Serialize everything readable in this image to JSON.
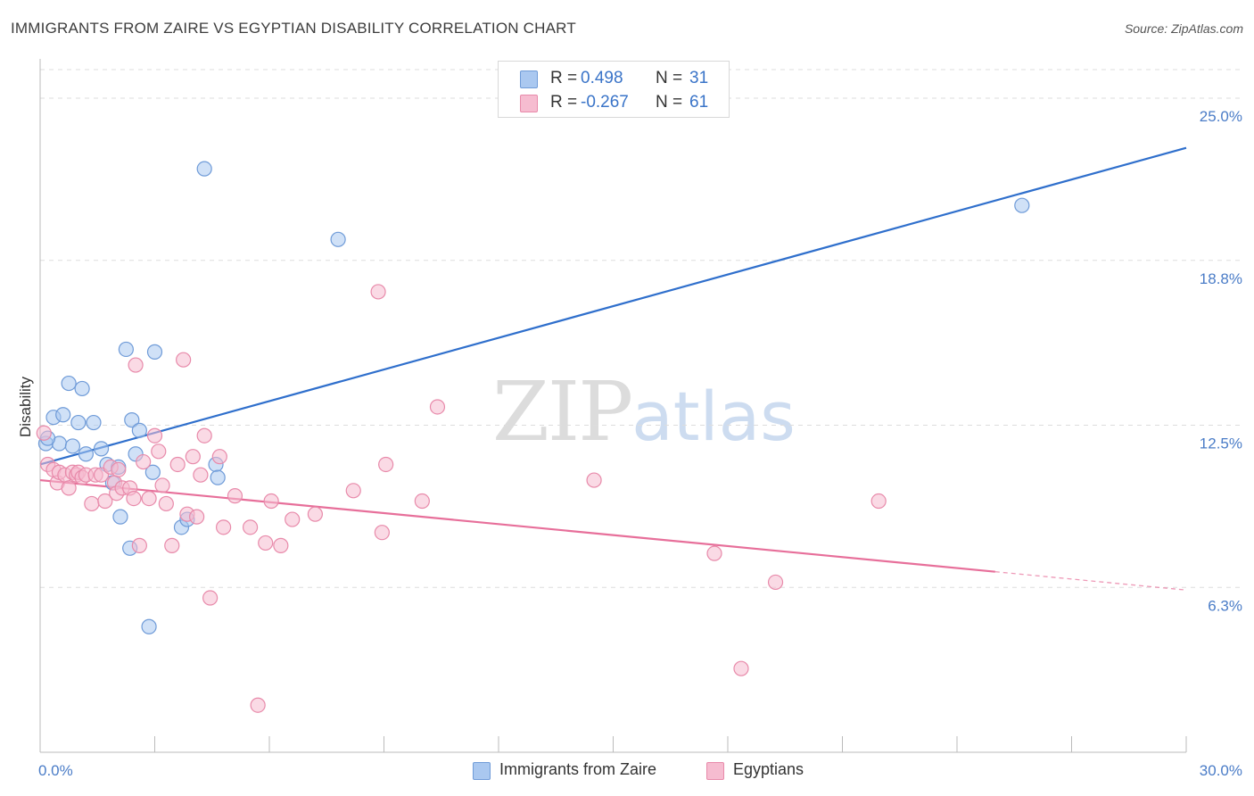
{
  "header": {
    "title": "IMMIGRANTS FROM ZAIRE VS EGYPTIAN DISABILITY CORRELATION CHART",
    "source": "Source: ZipAtlas.com"
  },
  "watermark": {
    "zip": "ZIP",
    "atlas": "atlas"
  },
  "legend_top": {
    "rows": [
      {
        "r_label": "R =",
        "r_value": "0.498",
        "n_label": "N =",
        "n_value": "31"
      },
      {
        "r_label": "R =",
        "r_value": "-0.267",
        "n_label": "N =",
        "n_value": "61"
      }
    ]
  },
  "legend_bottom": {
    "items": [
      {
        "label": "Immigrants from Zaire"
      },
      {
        "label": "Egyptians"
      }
    ]
  },
  "colors": {
    "blue_fill": "#aac8f0",
    "blue_stroke": "#6f9bd8",
    "blue_line": "#2f6fcc",
    "pink_fill": "#f6bcd0",
    "pink_stroke": "#e88aaa",
    "pink_line": "#e76f9a",
    "grid": "#dddddd",
    "tick_text": "#4a7cc7"
  },
  "chart_data": {
    "type": "scatter",
    "title": "IMMIGRANTS FROM ZAIRE VS EGYPTIAN DISABILITY CORRELATION CHART",
    "xlabel": "",
    "ylabel": "Disability",
    "xlim": [
      0,
      30
    ],
    "ylim": [
      0,
      26.5
    ],
    "x_tick_labels": [
      "0.0%",
      "30.0%"
    ],
    "y_ticks": [
      {
        "value": 6.3,
        "label": "6.3%"
      },
      {
        "value": 12.5,
        "label": "12.5%"
      },
      {
        "value": 18.8,
        "label": "18.8%"
      },
      {
        "value": 25.0,
        "label": "25.0%"
      }
    ],
    "series": [
      {
        "name": "Immigrants from Zaire",
        "R": 0.498,
        "N": 31,
        "trend": {
          "x0": 0.0,
          "y0": 11.0,
          "x1": 30.0,
          "y1": 23.1,
          "dashed_from": null
        },
        "points": [
          [
            0.15,
            11.8
          ],
          [
            0.35,
            12.8
          ],
          [
            0.5,
            11.8
          ],
          [
            0.6,
            12.9
          ],
          [
            0.75,
            14.1
          ],
          [
            0.85,
            11.7
          ],
          [
            1.0,
            12.6
          ],
          [
            1.1,
            13.9
          ],
          [
            1.2,
            11.4
          ],
          [
            1.4,
            12.6
          ],
          [
            1.6,
            11.6
          ],
          [
            1.75,
            11.0
          ],
          [
            1.9,
            10.3
          ],
          [
            2.05,
            10.9
          ],
          [
            2.1,
            9.0
          ],
          [
            2.25,
            15.4
          ],
          [
            2.35,
            7.8
          ],
          [
            2.4,
            12.7
          ],
          [
            2.5,
            11.4
          ],
          [
            2.6,
            12.3
          ],
          [
            2.85,
            4.8
          ],
          [
            2.95,
            10.7
          ],
          [
            3.0,
            15.3
          ],
          [
            3.7,
            8.6
          ],
          [
            3.85,
            8.9
          ],
          [
            4.3,
            22.3
          ],
          [
            4.6,
            11.0
          ],
          [
            4.65,
            10.5
          ],
          [
            7.8,
            19.6
          ],
          [
            25.7,
            20.9
          ],
          [
            0.2,
            12.0
          ]
        ]
      },
      {
        "name": "Egyptians",
        "R": -0.267,
        "N": 61,
        "trend": {
          "x0": 0.0,
          "y0": 10.4,
          "x1": 30.0,
          "y1": 6.2,
          "dashed_from": 25.0
        },
        "points": [
          [
            0.1,
            12.2
          ],
          [
            0.2,
            11.0
          ],
          [
            0.35,
            10.8
          ],
          [
            0.45,
            10.3
          ],
          [
            0.5,
            10.7
          ],
          [
            0.65,
            10.6
          ],
          [
            0.75,
            10.1
          ],
          [
            0.85,
            10.7
          ],
          [
            0.95,
            10.6
          ],
          [
            1.0,
            10.7
          ],
          [
            1.1,
            10.5
          ],
          [
            1.2,
            10.6
          ],
          [
            1.35,
            9.5
          ],
          [
            1.45,
            10.6
          ],
          [
            1.6,
            10.6
          ],
          [
            1.7,
            9.6
          ],
          [
            1.85,
            10.9
          ],
          [
            1.95,
            10.3
          ],
          [
            2.0,
            9.9
          ],
          [
            2.05,
            10.8
          ],
          [
            2.15,
            10.1
          ],
          [
            2.35,
            10.1
          ],
          [
            2.45,
            9.7
          ],
          [
            2.5,
            14.8
          ],
          [
            2.6,
            7.9
          ],
          [
            2.7,
            11.1
          ],
          [
            2.85,
            9.7
          ],
          [
            3.0,
            12.1
          ],
          [
            3.1,
            11.5
          ],
          [
            3.2,
            10.2
          ],
          [
            3.3,
            9.5
          ],
          [
            3.45,
            7.9
          ],
          [
            3.6,
            11.0
          ],
          [
            3.75,
            15.0
          ],
          [
            3.85,
            9.1
          ],
          [
            4.0,
            11.3
          ],
          [
            4.1,
            9.0
          ],
          [
            4.2,
            10.6
          ],
          [
            4.3,
            12.1
          ],
          [
            4.45,
            5.9
          ],
          [
            4.7,
            11.3
          ],
          [
            4.8,
            8.6
          ],
          [
            5.1,
            9.8
          ],
          [
            5.5,
            8.6
          ],
          [
            5.7,
            1.8
          ],
          [
            5.9,
            8.0
          ],
          [
            6.05,
            9.6
          ],
          [
            6.3,
            7.9
          ],
          [
            6.6,
            8.9
          ],
          [
            7.2,
            9.1
          ],
          [
            8.2,
            10.0
          ],
          [
            8.85,
            17.6
          ],
          [
            8.95,
            8.4
          ],
          [
            9.05,
            11.0
          ],
          [
            10.0,
            9.6
          ],
          [
            10.4,
            13.2
          ],
          [
            14.5,
            10.4
          ],
          [
            17.65,
            7.6
          ],
          [
            18.35,
            3.2
          ],
          [
            19.25,
            6.5
          ],
          [
            21.95,
            9.6
          ]
        ]
      }
    ]
  }
}
